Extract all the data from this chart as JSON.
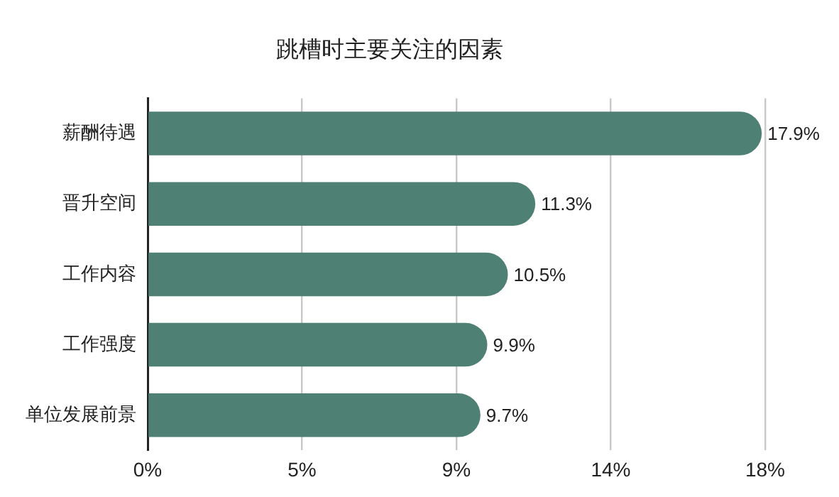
{
  "chart_data": {
    "type": "bar",
    "orientation": "horizontal",
    "title": "跳槽时主要关注的因素",
    "categories": [
      "薪酬待遇",
      "晋升空间",
      "工作内容",
      "工作强度",
      "单位发展前景"
    ],
    "values": [
      17.9,
      11.3,
      10.5,
      9.9,
      9.7
    ],
    "value_labels": [
      "17.9%",
      "11.3%",
      "10.5%",
      "9.9%",
      "9.7%"
    ],
    "color": "#4e8174",
    "xlim": [
      0,
      18
    ],
    "xticks": [
      {
        "value": 0,
        "label": "0%"
      },
      {
        "value": 4.5,
        "label": "5%"
      },
      {
        "value": 9,
        "label": "9%"
      },
      {
        "value": 13.5,
        "label": "14%"
      },
      {
        "value": 18,
        "label": "18%"
      }
    ],
    "grid": "x",
    "legend": false
  }
}
